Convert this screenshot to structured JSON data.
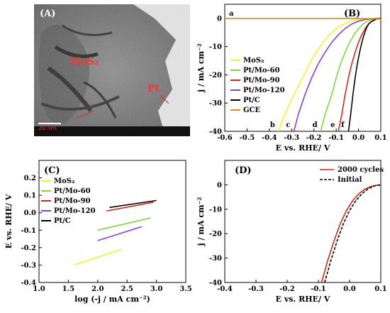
{
  "colors": {
    "MoS2": "#f3f03a",
    "PtMo60": "#7fd640",
    "PtMo90": "#c62b1a",
    "PtMo120": "#8a3fc6",
    "PtC": "#000000",
    "GCE": "#d3921a"
  },
  "panel_a": {
    "letter": "(A)",
    "label_mos2": "MoS₂",
    "label_pt": "Pt",
    "scale_bar": "20 nm"
  },
  "chart_data": [
    {
      "panel": "(B)",
      "type": "line",
      "xlabel": "E vs. RHE/ V",
      "ylabel": "j / mA cm⁻²",
      "xlim": [
        -0.6,
        0.1
      ],
      "ylim": [
        -40,
        5
      ],
      "xticks": [
        "-0.6",
        "-0.5",
        "-0.4",
        "-0.3",
        "-0.2",
        "-0.1",
        "0.0",
        "0.1"
      ],
      "yticks": [
        "0",
        "-10",
        "-20",
        "-30",
        "-40"
      ],
      "legend": "top-left",
      "series": [
        {
          "name": "MoS₂",
          "color": "#f3f03a",
          "letter": "b",
          "x": [
            -0.36,
            -0.33,
            -0.29,
            -0.25,
            -0.22,
            -0.19,
            -0.16,
            -0.13,
            -0.1,
            -0.06,
            -0.02,
            0.02,
            0.06,
            0.09
          ],
          "y": [
            -40,
            -34,
            -27,
            -21,
            -16,
            -12,
            -8.5,
            -5.8,
            -3.6,
            -1.8,
            -0.7,
            -0.2,
            0,
            0
          ]
        },
        {
          "name": "Pt/Mo-60",
          "color": "#7fd640",
          "letter": "d",
          "x": [
            -0.17,
            -0.15,
            -0.12,
            -0.1,
            -0.08,
            -0.06,
            -0.04,
            -0.02,
            0.0,
            0.02,
            0.04,
            0.06,
            0.08,
            0.1
          ],
          "y": [
            -40,
            -34,
            -27,
            -21,
            -16,
            -12,
            -8.5,
            -5.8,
            -3.6,
            -2.0,
            -1.0,
            -0.4,
            -0.1,
            0
          ]
        },
        {
          "name": "Pt/Mo-90",
          "color": "#c62b1a",
          "letter": "e",
          "x": [
            -0.09,
            -0.075,
            -0.06,
            -0.045,
            -0.03,
            -0.015,
            0.0,
            0.015,
            0.03,
            0.045,
            0.06,
            0.075,
            0.09,
            0.1
          ],
          "y": [
            -40,
            -34,
            -27,
            -21,
            -16,
            -12,
            -8.5,
            -5.8,
            -3.6,
            -2.0,
            -1.0,
            -0.4,
            -0.1,
            0
          ]
        },
        {
          "name": "Pt/Mo-120",
          "color": "#8a3fc6",
          "letter": "c",
          "x": [
            -0.29,
            -0.27,
            -0.24,
            -0.21,
            -0.18,
            -0.15,
            -0.12,
            -0.09,
            -0.06,
            -0.03,
            0.0,
            0.03,
            0.06,
            0.09
          ],
          "y": [
            -40,
            -34,
            -27,
            -21,
            -16,
            -12,
            -8.5,
            -5.8,
            -3.6,
            -2.0,
            -1.0,
            -0.4,
            -0.1,
            0
          ]
        },
        {
          "name": "Pt/C",
          "color": "#000000",
          "letter": "f",
          "x": [
            -0.045,
            -0.035,
            -0.025,
            -0.015,
            -0.005,
            0.005,
            0.015,
            0.025,
            0.035,
            0.045,
            0.06,
            0.075,
            0.09,
            0.1
          ],
          "y": [
            -40,
            -34,
            -27,
            -21,
            -16,
            -12,
            -8.5,
            -5.8,
            -3.6,
            -2.0,
            -1.0,
            -0.4,
            -0.1,
            0
          ]
        },
        {
          "name": "GCE",
          "color": "#d3921a",
          "letter": "a",
          "x": [
            -0.6,
            -0.4,
            -0.2,
            0.0,
            0.05,
            0.1
          ],
          "y": [
            0,
            0,
            0,
            0,
            -0.1,
            -0.2
          ]
        }
      ]
    },
    {
      "panel": "(C)",
      "type": "line",
      "xlabel": "log (-j / mA cm⁻²)",
      "ylabel": "E vs. RHE/ V",
      "xlim": [
        1.0,
        3.5
      ],
      "ylim": [
        -0.4,
        0.3
      ],
      "xticks": [
        "1.0",
        "1.5",
        "2.0",
        "2.5",
        "3.0",
        "3.5"
      ],
      "yticks": [
        "0.2",
        "0.1",
        "0.0",
        "-0.1",
        "-0.2",
        "-0.3",
        "-0.4"
      ],
      "legend": "top-left",
      "series": [
        {
          "name": "MoS₂",
          "color": "#f3f03a",
          "x": [
            1.6,
            2.4
          ],
          "y": [
            -0.3,
            -0.21
          ]
        },
        {
          "name": "Pt/Mo-60",
          "color": "#7fd640",
          "x": [
            2.0,
            2.9
          ],
          "y": [
            -0.1,
            -0.03
          ]
        },
        {
          "name": "Pt/Mo-90",
          "color": "#c62b1a",
          "x": [
            2.15,
            2.95
          ],
          "y": [
            0.01,
            0.06
          ]
        },
        {
          "name": "Pt/Mo-120",
          "color": "#8a3fc6",
          "x": [
            2.0,
            2.75
          ],
          "y": [
            -0.16,
            -0.08
          ]
        },
        {
          "name": "Pt/C",
          "color": "#000000",
          "x": [
            2.2,
            3.0
          ],
          "y": [
            0.03,
            0.07
          ]
        }
      ]
    },
    {
      "panel": "(D)",
      "type": "line",
      "xlabel": "E vs. RHE/ V",
      "ylabel": "j / mA cm⁻²",
      "xlim": [
        -0.4,
        0.1
      ],
      "ylim": [
        -40,
        10
      ],
      "xticks": [
        "-0.4",
        "-0.3",
        "-0.2",
        "-0.1",
        "0.0",
        "0.1"
      ],
      "yticks": [
        "0",
        "-10",
        "-20",
        "-30",
        "-40"
      ],
      "legend": "top-right",
      "series": [
        {
          "name": "2000 cycles",
          "color": "#c62b1a",
          "dash": false,
          "x": [
            -0.09,
            -0.07,
            -0.05,
            -0.03,
            -0.01,
            0.01,
            0.03,
            0.05,
            0.07,
            0.09,
            0.1
          ],
          "y": [
            -40,
            -31,
            -23,
            -16,
            -10.5,
            -6.5,
            -3.6,
            -1.7,
            -0.6,
            -0.1,
            0
          ]
        },
        {
          "name": "Initial",
          "color": "#000000",
          "dash": true,
          "x": [
            -0.08,
            -0.06,
            -0.04,
            -0.02,
            0.0,
            0.02,
            0.04,
            0.06,
            0.08,
            0.1
          ],
          "y": [
            -40,
            -31,
            -23,
            -16,
            -10.5,
            -6.5,
            -3.6,
            -1.6,
            -0.4,
            0
          ]
        }
      ]
    }
  ]
}
